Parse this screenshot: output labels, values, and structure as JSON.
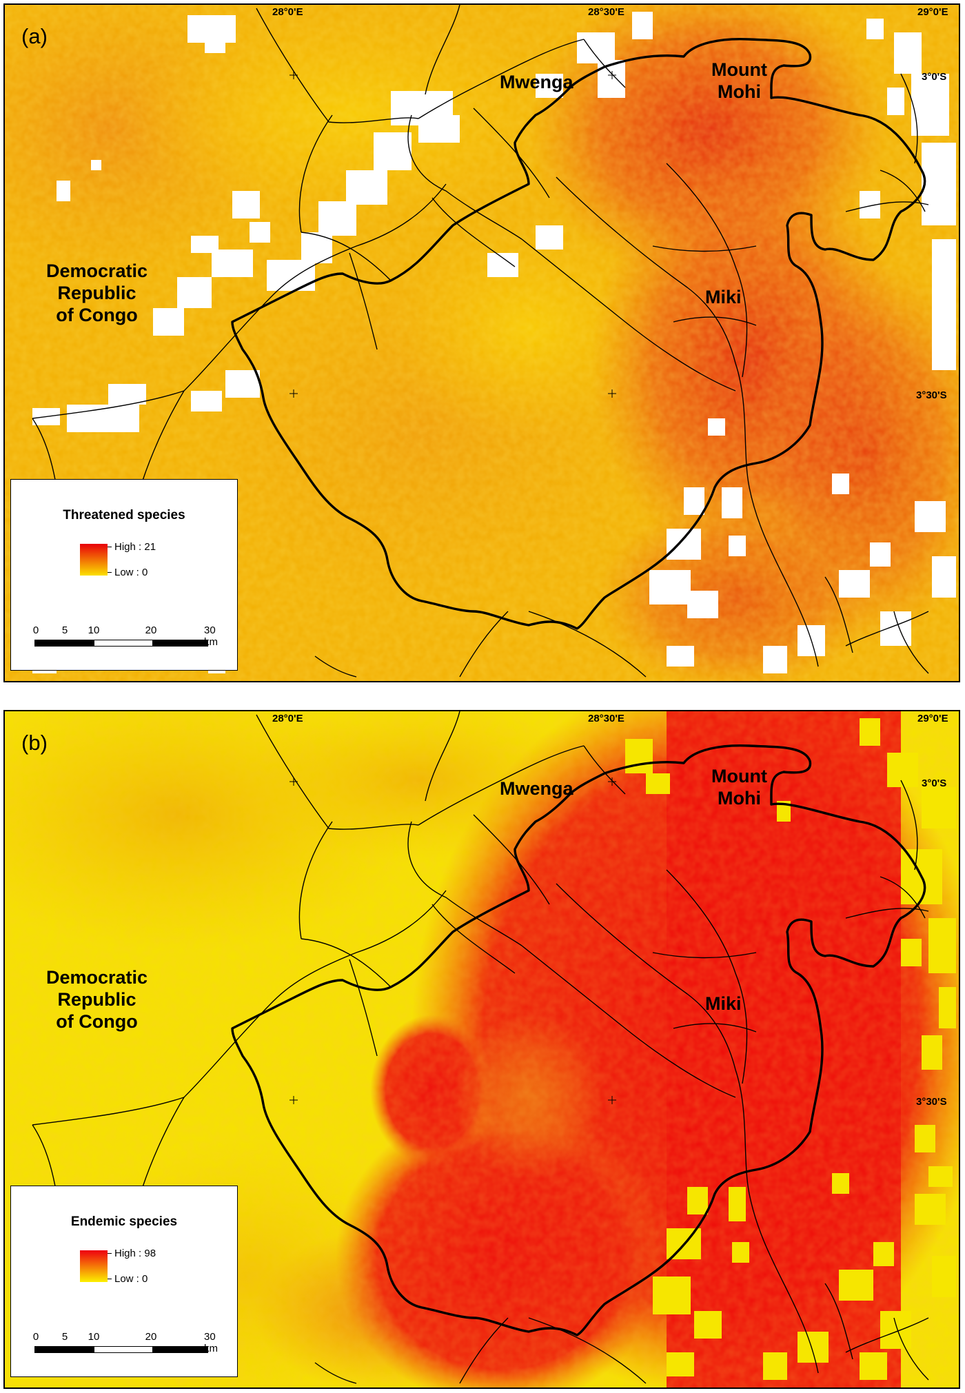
{
  "panels": [
    {
      "label": "(a)",
      "legend_title": "Threatened species",
      "high_label": "High : 21",
      "low_label": "Low : 0",
      "ramp_colors": [
        "#e8000a",
        "#fbe000"
      ]
    },
    {
      "label": "(b)",
      "legend_title": "Endemic species",
      "high_label": "High : 98",
      "low_label": "Low : 0",
      "ramp_colors": [
        "#ee0010",
        "#fcf000"
      ]
    }
  ],
  "coordinates": {
    "lon_28_00": "28°0'E",
    "lon_28_30": "28°30'E",
    "lon_29_00": "29°0'E",
    "lat_3_00": "3°0'S",
    "lat_3_30": "3°30'S"
  },
  "places": {
    "mwenga": "Mwenga",
    "mount_mohi_line1": "Mount",
    "mount_mohi_line2": "Mohi",
    "miki": "Miki",
    "drc_line1": "Democratic",
    "drc_line2": "Republic",
    "drc_line3": "of Congo"
  },
  "scale_bar": {
    "ticks": [
      "0",
      "5",
      "10",
      "20",
      "30 km"
    ]
  },
  "colors": {
    "threatened_base": "#f3b000",
    "threatened_high": "#e83010",
    "endemic_base": "#f6e600",
    "endemic_high": "#ee0a0a",
    "no_data": "#ffffff",
    "boundary": "#000000"
  }
}
